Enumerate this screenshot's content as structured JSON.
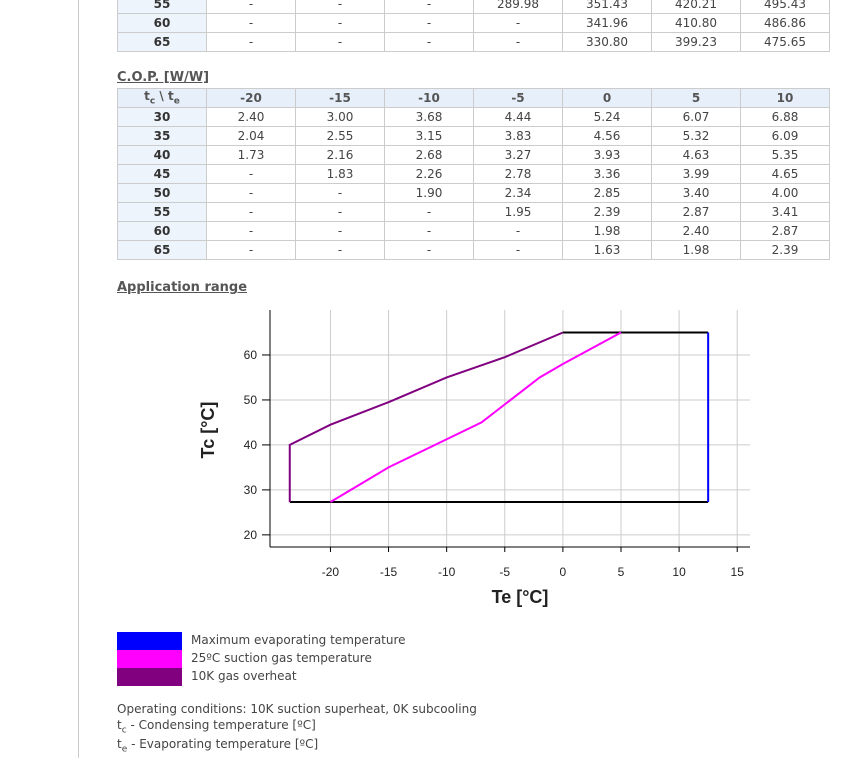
{
  "top_table": {
    "rows": [
      [
        "55",
        "-",
        "-",
        "-",
        "289.98",
        "351.43",
        "420.21",
        "495.43"
      ],
      [
        "60",
        "-",
        "-",
        "-",
        "-",
        "341.96",
        "410.80",
        "486.86"
      ],
      [
        "65",
        "-",
        "-",
        "-",
        "-",
        "330.80",
        "399.23",
        "475.65"
      ]
    ]
  },
  "cop_table": {
    "title": "C.O.P. [W/W]",
    "corner": [
      "t",
      "c",
      " \\ t",
      "e"
    ],
    "columns": [
      "-20",
      "-15",
      "-10",
      "-5",
      "0",
      "5",
      "10"
    ],
    "rows": [
      [
        "30",
        "2.40",
        "3.00",
        "3.68",
        "4.44",
        "5.24",
        "6.07",
        "6.88"
      ],
      [
        "35",
        "2.04",
        "2.55",
        "3.15",
        "3.83",
        "4.56",
        "5.32",
        "6.09"
      ],
      [
        "40",
        "1.73",
        "2.16",
        "2.68",
        "3.27",
        "3.93",
        "4.63",
        "5.35"
      ],
      [
        "45",
        "-",
        "1.83",
        "2.26",
        "2.78",
        "3.36",
        "3.99",
        "4.65"
      ],
      [
        "50",
        "-",
        "-",
        "1.90",
        "2.34",
        "2.85",
        "3.40",
        "4.00"
      ],
      [
        "55",
        "-",
        "-",
        "-",
        "1.95",
        "2.39",
        "2.87",
        "3.41"
      ],
      [
        "60",
        "-",
        "-",
        "-",
        "-",
        "1.98",
        "2.40",
        "2.87"
      ],
      [
        "65",
        "-",
        "-",
        "-",
        "-",
        "1.63",
        "1.98",
        "2.39"
      ]
    ]
  },
  "section_title": "Application range",
  "chart_data": {
    "type": "line",
    "xlabel": "Te [°C]",
    "ylabel": "Tc [°C]",
    "xlim": [
      -25.2,
      16.1
    ],
    "ylim": [
      17.3,
      70
    ],
    "xticks": [
      -20,
      -15,
      -10,
      -5,
      0,
      5,
      10,
      15
    ],
    "yticks": [
      20,
      30,
      40,
      50,
      60
    ],
    "grid": true,
    "series": [
      {
        "name": "Maximum evaporating temperature",
        "color": "#0000ff",
        "x": [
          12.5,
          12.5
        ],
        "values": [
          27.3,
          65
        ]
      },
      {
        "name": "25ºC suction gas temperature",
        "color": "#ff00ff",
        "x": [
          -20,
          -15,
          -7,
          -2,
          0,
          5
        ],
        "values": [
          27.3,
          35,
          45,
          55,
          58,
          65
        ]
      },
      {
        "name": "10K gas overheat",
        "color": "#800080",
        "x": [
          -23.5,
          -23.5,
          -20,
          -15,
          -10,
          -5,
          0
        ],
        "values": [
          27.3,
          40,
          44.5,
          49.5,
          55,
          59.5,
          65
        ]
      }
    ],
    "outline": {
      "color": "#000000",
      "x": [
        -23.5,
        12.5,
        null,
        0,
        12.5
      ],
      "values": [
        27.3,
        27.3,
        null,
        65,
        65
      ]
    }
  },
  "notes": {
    "conditions": "Operating conditions: 10K suction superheat, 0K subcooling",
    "tc": [
      "t",
      "c",
      " - Condensing temperature [ºC]"
    ],
    "te": [
      "t",
      "e",
      " - Evaporating temperature [ºC]"
    ]
  }
}
